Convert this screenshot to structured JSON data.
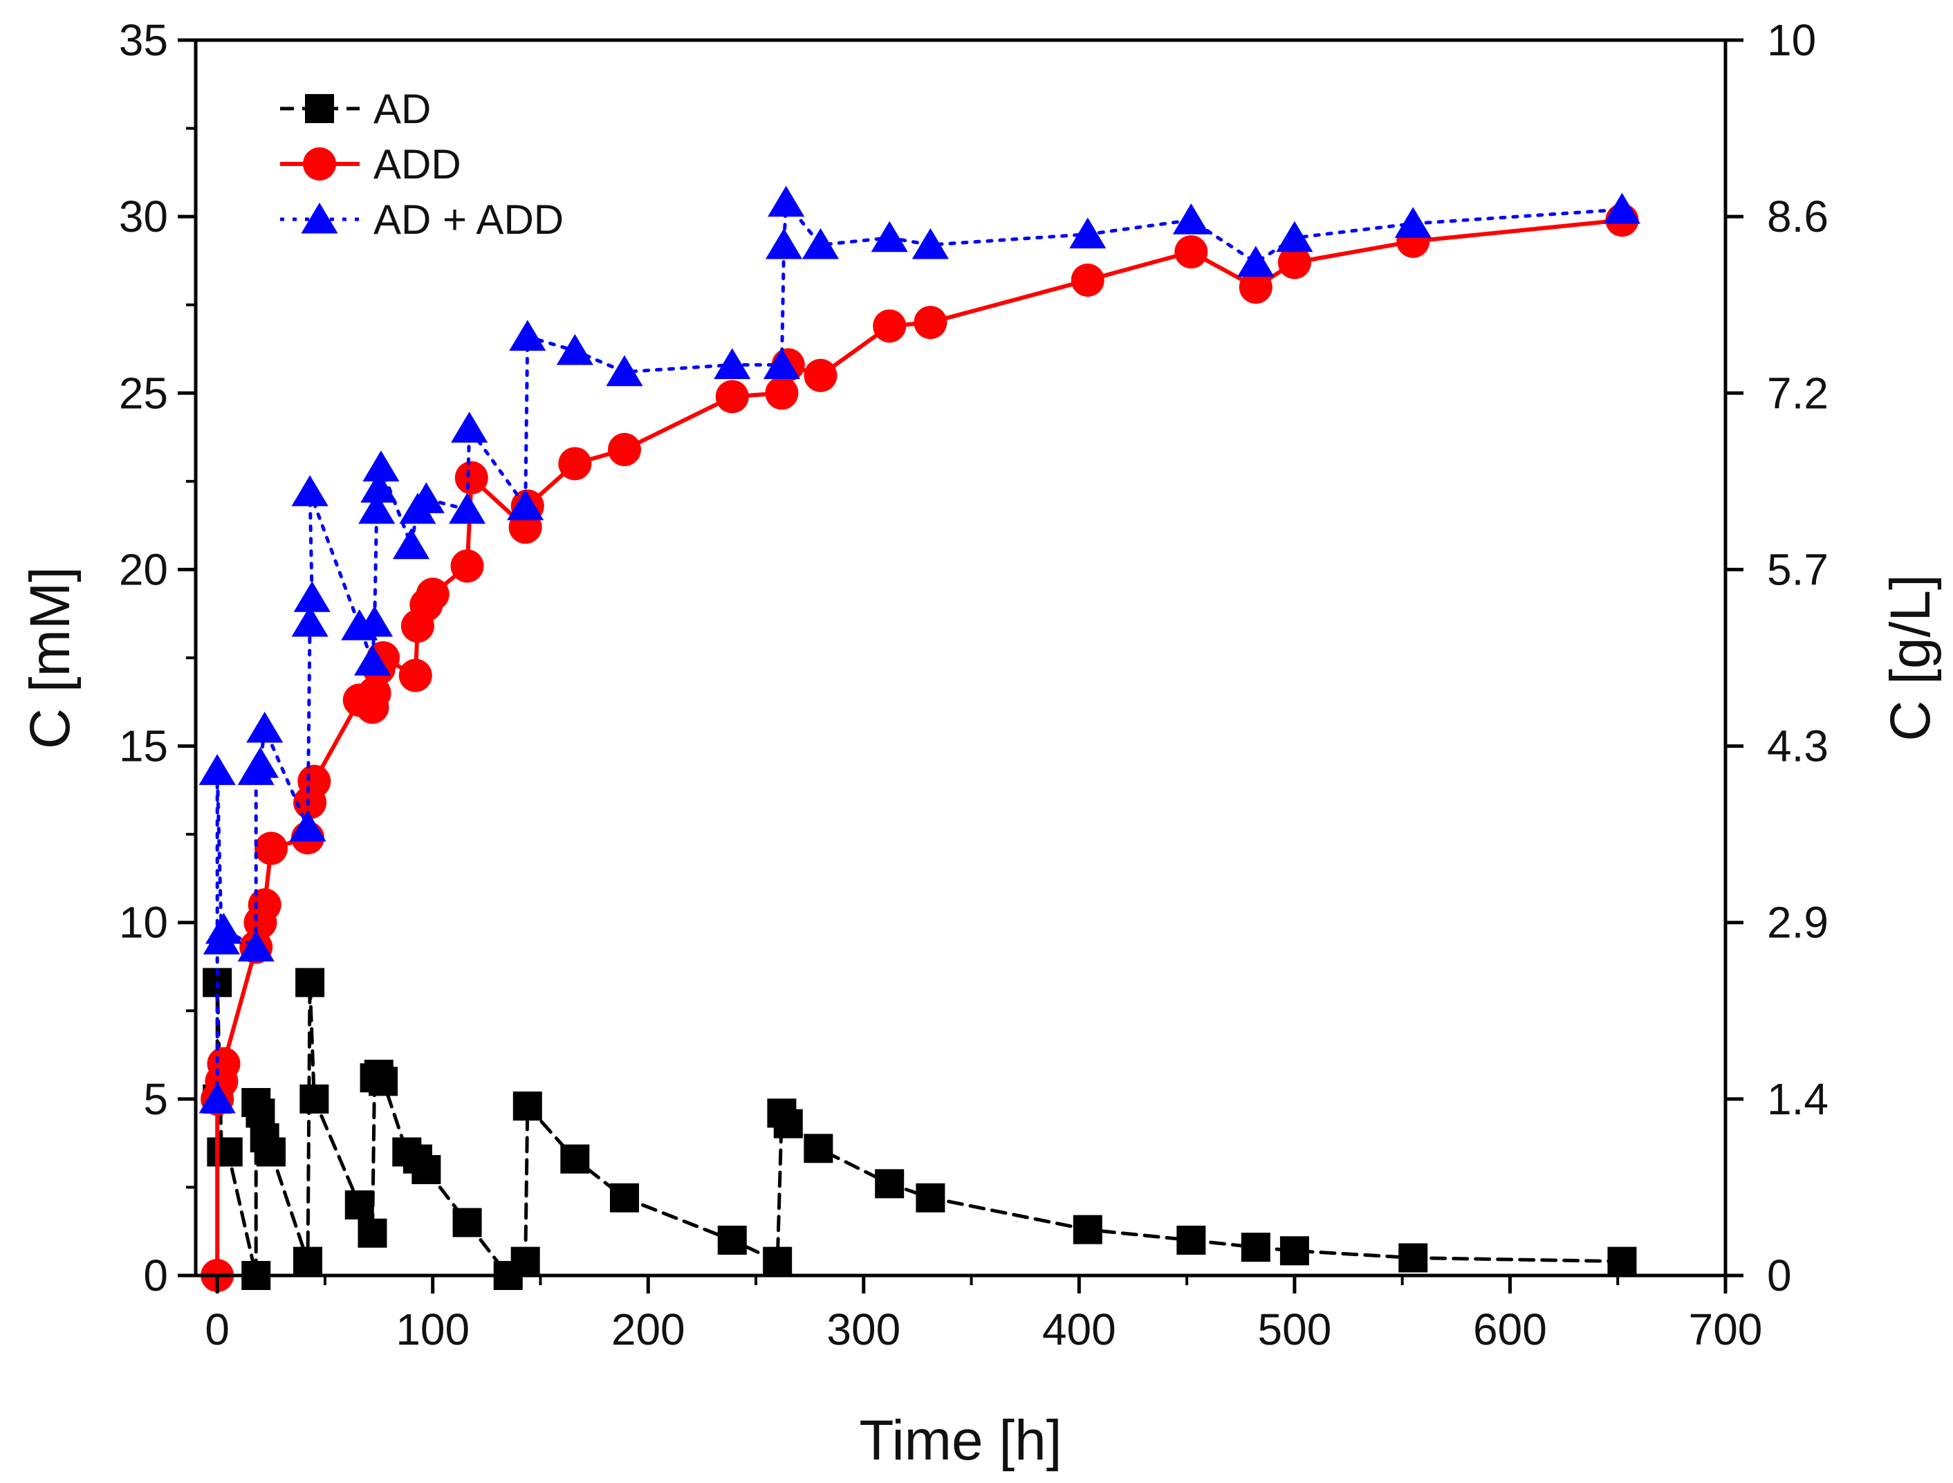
{
  "chart_data": {
    "type": "line",
    "xlabel": "Time [h]",
    "ylabel": "C [mM]",
    "ylabel_right": "C [g/L]",
    "xlim": [
      -10,
      700
    ],
    "ylim": [
      0,
      35
    ],
    "x_ticks": [
      "0",
      "100",
      "200",
      "300",
      "400",
      "500",
      "600",
      "700"
    ],
    "y_ticks": [
      "0",
      "5",
      "10",
      "15",
      "20",
      "25",
      "30",
      "35"
    ],
    "y_right_ticks": [
      {
        "value": 0,
        "label": "0"
      },
      {
        "value": 5,
        "label": "1.4"
      },
      {
        "value": 10,
        "label": "2.9"
      },
      {
        "value": 15,
        "label": "4.3"
      },
      {
        "value": 20,
        "label": "5.7"
      },
      {
        "value": 25,
        "label": "7.2"
      },
      {
        "value": 30,
        "label": "8.6"
      },
      {
        "value": 35,
        "label": "10"
      }
    ],
    "legend_position": "top-left",
    "series": [
      {
        "name": "AD",
        "color": "#000000",
        "marker": "square",
        "line_style": "dashed",
        "points": [
          [
            0,
            5.0
          ],
          [
            0,
            8.3
          ],
          [
            2,
            3.5
          ],
          [
            5,
            3.5
          ],
          [
            18,
            0.0
          ],
          [
            18,
            4.9
          ],
          [
            20,
            4.6
          ],
          [
            22,
            3.9
          ],
          [
            25,
            3.5
          ],
          [
            42,
            0.4
          ],
          [
            43,
            8.3
          ],
          [
            45,
            5.0
          ],
          [
            66,
            2.0
          ],
          [
            72,
            1.2
          ],
          [
            73,
            5.6
          ],
          [
            75,
            5.7
          ],
          [
            77,
            5.5
          ],
          [
            88,
            3.5
          ],
          [
            93,
            3.3
          ],
          [
            97,
            3.0
          ],
          [
            116,
            1.5
          ],
          [
            135,
            0.0
          ],
          [
            143,
            0.4
          ],
          [
            144,
            4.8
          ],
          [
            166,
            3.3
          ],
          [
            189,
            2.2
          ],
          [
            239,
            1.0
          ],
          [
            260,
            0.4
          ],
          [
            262,
            4.6
          ],
          [
            265,
            4.3
          ],
          [
            279,
            3.6
          ],
          [
            312,
            2.6
          ],
          [
            331,
            2.2
          ],
          [
            404,
            1.3
          ],
          [
            452,
            1.0
          ],
          [
            482,
            0.8
          ],
          [
            500,
            0.7
          ],
          [
            555,
            0.5
          ],
          [
            652,
            0.4
          ]
        ]
      },
      {
        "name": "ADD",
        "color": "#ff0000",
        "marker": "circle",
        "line_style": "solid",
        "points": [
          [
            0,
            0.0
          ],
          [
            0,
            5.0
          ],
          [
            2,
            5.5
          ],
          [
            3,
            6.0
          ],
          [
            18,
            9.3
          ],
          [
            20,
            10.0
          ],
          [
            22,
            10.5
          ],
          [
            25,
            12.1
          ],
          [
            42,
            12.4
          ],
          [
            43,
            13.4
          ],
          [
            45,
            14.0
          ],
          [
            66,
            16.3
          ],
          [
            72,
            16.1
          ],
          [
            73,
            16.5
          ],
          [
            75,
            17.2
          ],
          [
            77,
            17.5
          ],
          [
            92,
            17.0
          ],
          [
            93,
            18.4
          ],
          [
            97,
            19.0
          ],
          [
            100,
            19.3
          ],
          [
            116,
            20.1
          ],
          [
            118,
            22.6
          ],
          [
            143,
            21.2
          ],
          [
            144,
            21.8
          ],
          [
            166,
            23.0
          ],
          [
            189,
            23.4
          ],
          [
            239,
            24.9
          ],
          [
            262,
            25.0
          ],
          [
            265,
            25.8
          ],
          [
            280,
            25.5
          ],
          [
            312,
            26.9
          ],
          [
            331,
            27.0
          ],
          [
            404,
            28.2
          ],
          [
            452,
            29.0
          ],
          [
            482,
            28.0
          ],
          [
            500,
            28.7
          ],
          [
            555,
            29.3
          ],
          [
            652,
            29.9
          ]
        ]
      },
      {
        "name": "AD + ADD",
        "color": "#0000ff",
        "marker": "triangle",
        "line_style": "dotted",
        "points": [
          [
            0,
            5.0
          ],
          [
            0,
            14.3
          ],
          [
            2,
            9.5
          ],
          [
            3,
            9.8
          ],
          [
            18,
            9.3
          ],
          [
            18,
            14.3
          ],
          [
            20,
            14.5
          ],
          [
            22,
            15.5
          ],
          [
            42,
            12.7
          ],
          [
            43,
            18.5
          ],
          [
            44,
            19.2
          ],
          [
            43,
            22.2
          ],
          [
            66,
            18.4
          ],
          [
            72,
            17.4
          ],
          [
            73,
            18.5
          ],
          [
            74,
            21.7
          ],
          [
            75,
            22.3
          ],
          [
            76,
            22.9
          ],
          [
            90,
            20.7
          ],
          [
            93,
            21.7
          ],
          [
            97,
            22.0
          ],
          [
            116,
            21.7
          ],
          [
            117,
            24.0
          ],
          [
            143,
            21.8
          ],
          [
            144,
            26.6
          ],
          [
            166,
            26.2
          ],
          [
            189,
            25.6
          ],
          [
            239,
            25.8
          ],
          [
            262,
            25.8
          ],
          [
            263,
            29.2
          ],
          [
            264,
            30.4
          ],
          [
            280,
            29.2
          ],
          [
            312,
            29.4
          ],
          [
            331,
            29.2
          ],
          [
            404,
            29.5
          ],
          [
            452,
            29.9
          ],
          [
            482,
            28.7
          ],
          [
            500,
            29.4
          ],
          [
            555,
            29.8
          ],
          [
            652,
            30.2
          ]
        ]
      }
    ]
  }
}
